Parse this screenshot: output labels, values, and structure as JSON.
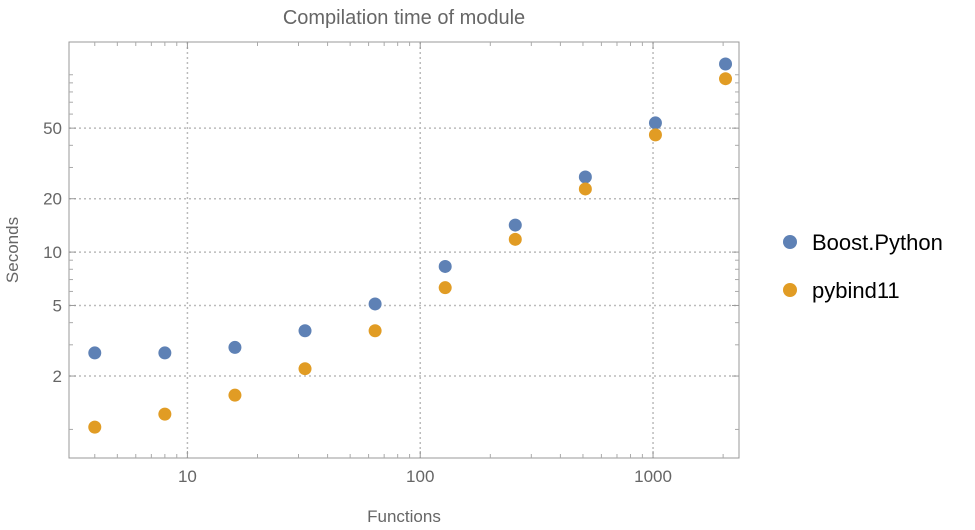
{
  "chart_data": {
    "type": "scatter",
    "title": "Compilation time of module",
    "xlabel": "Functions",
    "ylabel": "Seconds",
    "x_scale": "log",
    "y_scale": "log",
    "xlim": [
      3.1,
      2340
    ],
    "ylim": [
      0.69,
      153
    ],
    "x_ticks": [
      10,
      100,
      1000
    ],
    "x_tick_labels": [
      "10",
      "100",
      "1000"
    ],
    "y_ticks": [
      2,
      5,
      10,
      20,
      50
    ],
    "y_tick_labels": [
      "2",
      "5",
      "10",
      "20",
      "50"
    ],
    "grid": true,
    "legend_position": "right",
    "x": [
      4,
      8,
      16,
      32,
      64,
      128,
      256,
      512,
      1024,
      2048
    ],
    "series": [
      {
        "name": "Boost.Python",
        "color": "#5e81b5",
        "values": [
          2.7,
          2.7,
          2.9,
          3.6,
          5.1,
          8.3,
          14.2,
          26.5,
          53.5,
          115
        ]
      },
      {
        "name": "pybind11",
        "color": "#e19c24",
        "values": [
          1.03,
          1.22,
          1.56,
          2.2,
          3.6,
          6.3,
          11.8,
          22.7,
          45.8,
          95
        ]
      }
    ]
  }
}
